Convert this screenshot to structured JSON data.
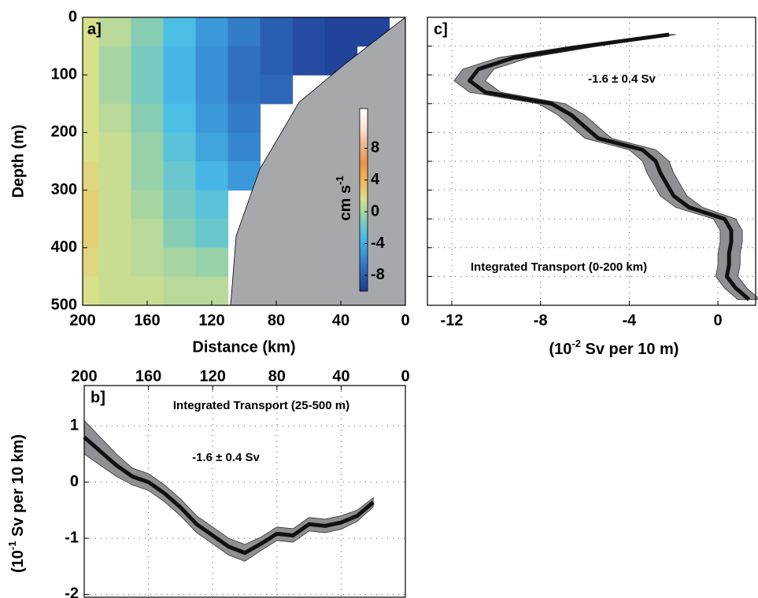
{
  "chart_data": [
    {
      "type": "contour",
      "panel_label": "a]",
      "xlabel": "Distance (km)",
      "ylabel": "Depth (m)",
      "x": [
        200,
        180,
        160,
        140,
        120,
        100,
        80,
        60,
        40,
        20
      ],
      "y": [
        25,
        75,
        125,
        175,
        225,
        275,
        325,
        375,
        425,
        475
      ],
      "values": [
        [
          1.5,
          0.5,
          -1,
          -3,
          -5,
          -6.5,
          -8,
          -9,
          -9.5,
          -9.5
        ],
        [
          1.5,
          0,
          -1.5,
          -3.5,
          -5.5,
          -7,
          -8,
          -9,
          -9.5,
          null
        ],
        [
          1.5,
          0,
          -1.5,
          -3.5,
          -5.5,
          -7,
          -7.5,
          null,
          null,
          null
        ],
        [
          1.5,
          0.5,
          -1,
          -3,
          -5,
          -6.5,
          null,
          null,
          null,
          null
        ],
        [
          1.5,
          1,
          -0.5,
          -2.5,
          -4.5,
          -6,
          null,
          null,
          null,
          null
        ],
        [
          2,
          1,
          -0.5,
          -2,
          -3.5,
          -5,
          null,
          null,
          null,
          null
        ],
        [
          2.5,
          1,
          0,
          -1.5,
          -2.5,
          null,
          null,
          null,
          null,
          null
        ],
        [
          2.5,
          1,
          0.5,
          -1,
          -2,
          null,
          null,
          null,
          null,
          null
        ],
        [
          2,
          1,
          0.5,
          0,
          -0.5,
          null,
          null,
          null,
          null,
          null
        ],
        [
          1.5,
          1,
          1,
          0.5,
          0.5,
          null,
          null,
          null,
          null,
          null
        ]
      ],
      "xlim": [
        200,
        0
      ],
      "xticks": [
        200,
        160,
        120,
        80,
        40,
        0
      ],
      "xaxis": "bottom",
      "ylim": [
        0,
        500
      ],
      "yticks": [
        0,
        100,
        200,
        300,
        400,
        500
      ],
      "yreverse": true,
      "ytick_labels": true,
      "grid": false,
      "clim": [
        -10,
        13
      ],
      "cticks": [
        8,
        4,
        0,
        -4,
        -8
      ],
      "clabel": [
        "cm s",
        "-1"
      ],
      "colorscale": [
        "#1f3a93",
        "#2c63b5",
        "#3a92d6",
        "#48bde9",
        "#8ccfae",
        "#d9e08a",
        "#f2b85a",
        "#ec9448",
        "#f0b590",
        "#fbe6da",
        "#ffffff"
      ],
      "land_color": "#a6a8ab"
    },
    {
      "type": "profile",
      "panel_label": "c]",
      "annotation": "-1.6 ± 0.4 Sv",
      "title": "Integrated Transport (0-200 km)",
      "xlabel": [
        "(10",
        "-2",
        " Sv per 10 m)"
      ],
      "depths": [
        30,
        50,
        70,
        90,
        110,
        130,
        150,
        170,
        190,
        210,
        230,
        250,
        270,
        290,
        310,
        330,
        350,
        370,
        390,
        410,
        430,
        450,
        470,
        490
      ],
      "series": [
        {
          "color": "#111111",
          "band_color": "#8e9094",
          "values": [
            -2.2,
            -6,
            -9.2,
            -10.8,
            -11.2,
            -10.5,
            -7.5,
            -6.6,
            -6,
            -5.4,
            -3.4,
            -2.8,
            -2.6,
            -2.3,
            -2,
            -1.3,
            0.3,
            0.6,
            0.6,
            0.5,
            0.5,
            0.4,
            0.8,
            1.4
          ],
          "errors": [
            0.3,
            0.6,
            0.7,
            0.7,
            0.7,
            0.7,
            0.6,
            0.6,
            0.6,
            0.6,
            0.6,
            0.6,
            0.6,
            0.6,
            0.6,
            0.6,
            0.5,
            0.5,
            0.5,
            0.5,
            0.5,
            0.5,
            0.5,
            0.5
          ]
        }
      ],
      "xlim": [
        -13.1,
        1.7
      ],
      "xticks": [
        -12,
        -8,
        -4,
        0
      ],
      "xaxis": "bottom",
      "ylim": [
        0,
        500
      ],
      "yticks": [
        50,
        100,
        150,
        200,
        250,
        300,
        350,
        400,
        450
      ],
      "yreverse": true,
      "ytick_labels": false,
      "grid": true
    },
    {
      "type": "line",
      "panel_label": "b]",
      "annotation": "-1.6 ± 0.4 Sv",
      "title": "Integrated Transport (25-500 m)",
      "ylabel": [
        "(10",
        "-1",
        " Sv per 10 km)"
      ],
      "x": [
        200,
        190,
        180,
        170,
        160,
        150,
        140,
        130,
        120,
        110,
        100,
        90,
        80,
        70,
        60,
        50,
        40,
        30,
        20
      ],
      "series": [
        {
          "color": "#111111",
          "band_color": "#8e9094",
          "values": [
            0.8,
            0.55,
            0.3,
            0.1,
            0,
            -0.2,
            -0.45,
            -0.75,
            -0.95,
            -1.15,
            -1.26,
            -1.1,
            -0.92,
            -0.95,
            -0.75,
            -0.78,
            -0.72,
            -0.6,
            -0.36
          ],
          "errors": [
            0.3,
            0.25,
            0.2,
            0.15,
            0.15,
            0.15,
            0.15,
            0.15,
            0.15,
            0.15,
            0.15,
            0.12,
            0.12,
            0.12,
            0.12,
            0.12,
            0.12,
            0.1,
            0.08
          ]
        }
      ],
      "xlim": [
        200,
        0
      ],
      "xticks": [
        200,
        160,
        120,
        80,
        40,
        0
      ],
      "xaxis": "top",
      "ylim": [
        -2.05,
        1.72
      ],
      "yticks": [
        -2,
        -1,
        0,
        1
      ],
      "yreverse": false,
      "ytick_labels": true,
      "grid": true
    }
  ]
}
